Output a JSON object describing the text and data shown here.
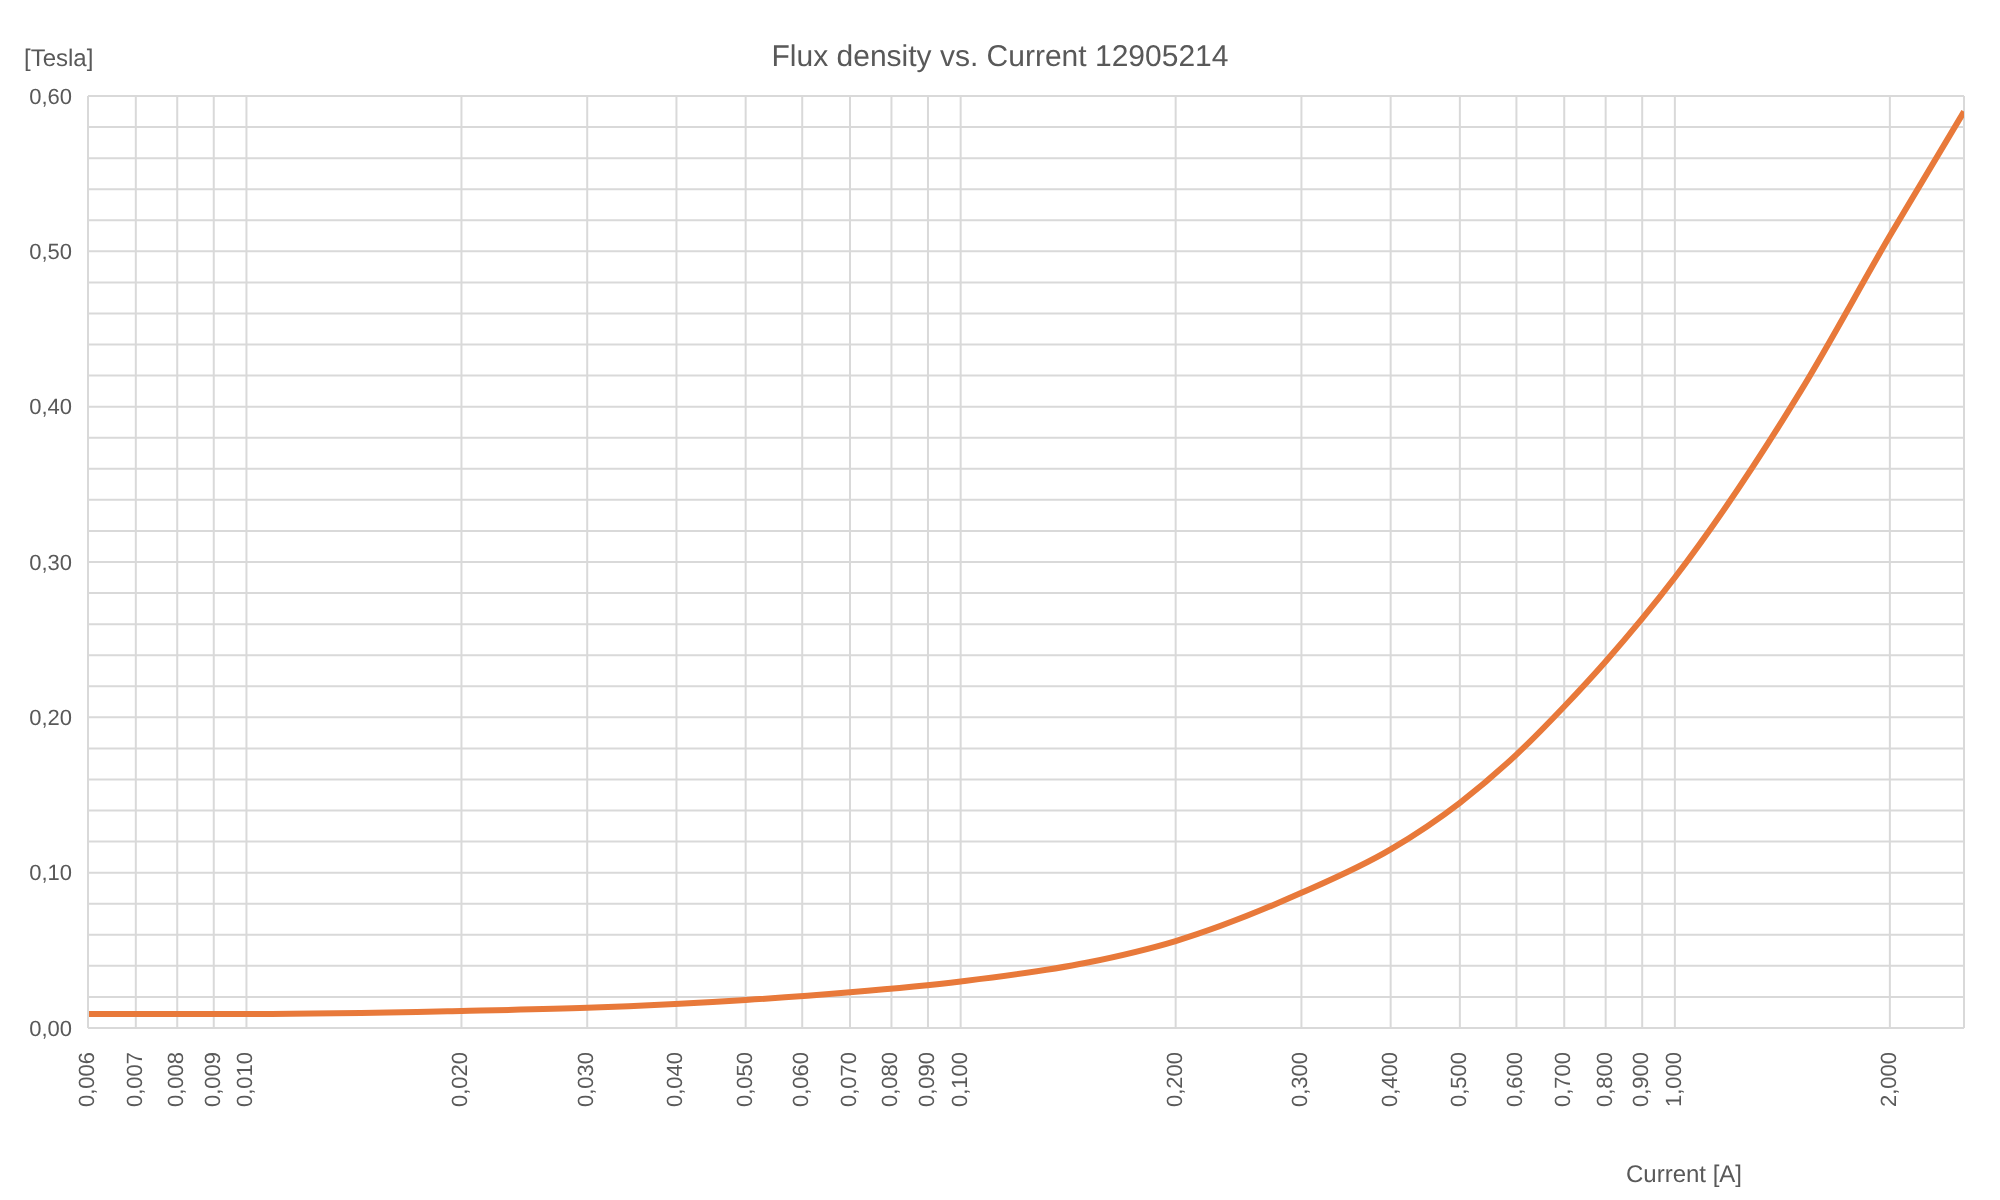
{
  "chart_data": {
    "type": "line",
    "title": "Flux density vs. Current 12905214",
    "xlabel": "Current [A]",
    "ylabel": "[Tesla]",
    "log": "x",
    "grid": true,
    "legend": false,
    "marker": "none",
    "line_style": "solid",
    "xlim": [
      0.006,
      2.54
    ],
    "ylim": [
      0,
      0.6
    ],
    "xticks": [
      {
        "value": 0.006,
        "label": "0,006"
      },
      {
        "value": 0.007,
        "label": "0,007"
      },
      {
        "value": 0.008,
        "label": "0,008"
      },
      {
        "value": 0.009,
        "label": "0,009"
      },
      {
        "value": 0.01,
        "label": "0,010"
      },
      {
        "value": 0.02,
        "label": "0,020"
      },
      {
        "value": 0.03,
        "label": "0,030"
      },
      {
        "value": 0.04,
        "label": "0,040"
      },
      {
        "value": 0.05,
        "label": "0,050"
      },
      {
        "value": 0.06,
        "label": "0,060"
      },
      {
        "value": 0.07,
        "label": "0,070"
      },
      {
        "value": 0.08,
        "label": "0,080"
      },
      {
        "value": 0.09,
        "label": "0,090"
      },
      {
        "value": 0.1,
        "label": "0,100"
      },
      {
        "value": 0.2,
        "label": "0,200"
      },
      {
        "value": 0.3,
        "label": "0,300"
      },
      {
        "value": 0.4,
        "label": "0,400"
      },
      {
        "value": 0.5,
        "label": "0,500"
      },
      {
        "value": 0.6,
        "label": "0,600"
      },
      {
        "value": 0.7,
        "label": "0,700"
      },
      {
        "value": 0.8,
        "label": "0,800"
      },
      {
        "value": 0.9,
        "label": "0,900"
      },
      {
        "value": 1,
        "label": "1,000"
      },
      {
        "value": 2,
        "label": "2,000"
      }
    ],
    "yticks": [
      {
        "value": 0,
        "label": "0,00"
      },
      {
        "value": 0.02,
        "label": null
      },
      {
        "value": 0.04,
        "label": null
      },
      {
        "value": 0.06,
        "label": null
      },
      {
        "value": 0.08,
        "label": null
      },
      {
        "value": 0.1,
        "label": "0,10"
      },
      {
        "value": 0.12,
        "label": null
      },
      {
        "value": 0.14,
        "label": null
      },
      {
        "value": 0.16,
        "label": null
      },
      {
        "value": 0.18,
        "label": null
      },
      {
        "value": 0.2,
        "label": "0,20"
      },
      {
        "value": 0.22,
        "label": null
      },
      {
        "value": 0.24,
        "label": null
      },
      {
        "value": 0.26,
        "label": null
      },
      {
        "value": 0.28,
        "label": null
      },
      {
        "value": 0.3,
        "label": "0,30"
      },
      {
        "value": 0.32,
        "label": null
      },
      {
        "value": 0.34,
        "label": null
      },
      {
        "value": 0.36,
        "label": null
      },
      {
        "value": 0.38,
        "label": null
      },
      {
        "value": 0.4,
        "label": "0,40"
      },
      {
        "value": 0.42,
        "label": null
      },
      {
        "value": 0.44,
        "label": null
      },
      {
        "value": 0.46,
        "label": null
      },
      {
        "value": 0.48,
        "label": null
      },
      {
        "value": 0.5,
        "label": "0,50"
      },
      {
        "value": 0.52,
        "label": null
      },
      {
        "value": 0.54,
        "label": null
      },
      {
        "value": 0.56,
        "label": null
      },
      {
        "value": 0.58,
        "label": null
      },
      {
        "value": 0.6,
        "label": "0,60"
      }
    ],
    "x": [
      0.006,
      0.01,
      0.02,
      0.03,
      0.05,
      0.07,
      0.1,
      0.15,
      0.2,
      0.3,
      0.4,
      0.5,
      0.6,
      0.7,
      0.8,
      1,
      1.5,
      2,
      2.54
    ],
    "series": [
      {
        "color": "#e8793a",
        "values": [
          0.009,
          0.009,
          0.011,
          0.013,
          0.018,
          0.023,
          0.03,
          0.042,
          0.056,
          0.087,
          0.115,
          0.145,
          0.176,
          0.207,
          0.236,
          0.29,
          0.41,
          0.51,
          0.59
        ]
      }
    ]
  }
}
